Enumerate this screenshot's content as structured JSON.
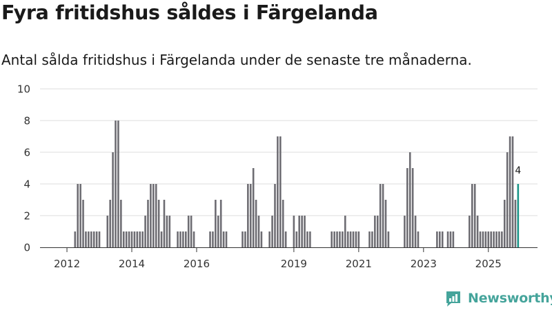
{
  "header": {
    "title": "Fyra fritidshus såldes i Färgelanda",
    "subtitle": "Antal sålda fritidshus i Färgelanda under de senaste tre månaderna."
  },
  "brand": {
    "name": "Newsworthy"
  },
  "colors": {
    "bar": "#6d6c72",
    "highlight": "#1b9588",
    "grid": "#dddddd",
    "axis": "#333333",
    "brand": "#45a49b"
  },
  "chart_data": {
    "type": "bar",
    "title": "Fyra fritidshus såldes i Färgelanda",
    "subtitle": "Antal sålda fritidshus i Färgelanda under de senaste tre månaderna.",
    "xlabel": "",
    "ylabel": "",
    "ylim": [
      0,
      10
    ],
    "yticks": [
      0,
      2,
      4,
      6,
      8,
      10
    ],
    "grid": true,
    "x_start": "2011-04",
    "frequency": "monthly",
    "xticks": [
      {
        "label": "2012",
        "index": 9
      },
      {
        "label": "2014",
        "index": 33
      },
      {
        "label": "2016",
        "index": 57
      },
      {
        "label": "2019",
        "index": 93
      },
      {
        "label": "2021",
        "index": 117
      },
      {
        "label": "2023",
        "index": 141
      },
      {
        "label": "2025",
        "index": 165
      }
    ],
    "values": [
      0,
      0,
      0,
      0,
      0,
      0,
      0,
      0,
      0,
      0,
      0,
      0,
      1,
      4,
      4,
      3,
      1,
      1,
      1,
      1,
      1,
      1,
      0,
      0,
      2,
      3,
      6,
      8,
      8,
      3,
      1,
      1,
      1,
      1,
      1,
      1,
      1,
      1,
      2,
      3,
      4,
      4,
      4,
      3,
      1,
      3,
      2,
      2,
      0,
      0,
      1,
      1,
      1,
      1,
      2,
      2,
      1,
      0,
      0,
      0,
      0,
      0,
      1,
      1,
      3,
      2,
      3,
      1,
      1,
      0,
      0,
      0,
      0,
      0,
      1,
      1,
      4,
      4,
      5,
      3,
      2,
      1,
      0,
      0,
      1,
      2,
      4,
      7,
      7,
      3,
      1,
      0,
      0,
      2,
      1,
      2,
      2,
      2,
      1,
      1,
      0,
      0,
      0,
      0,
      0,
      0,
      0,
      1,
      1,
      1,
      1,
      1,
      2,
      1,
      1,
      1,
      1,
      1,
      0,
      0,
      0,
      1,
      1,
      2,
      2,
      4,
      4,
      3,
      1,
      0,
      0,
      0,
      0,
      0,
      2,
      5,
      6,
      5,
      2,
      1,
      0,
      0,
      0,
      0,
      0,
      0,
      1,
      1,
      1,
      0,
      1,
      1,
      1,
      0,
      0,
      0,
      0,
      0,
      2,
      4,
      4,
      2,
      1,
      1,
      1,
      1,
      1,
      1,
      1,
      1,
      1,
      3,
      6,
      7,
      7,
      3,
      4
    ],
    "highlight_last": true,
    "annotations": [
      {
        "label": "4",
        "target": "last"
      }
    ]
  }
}
